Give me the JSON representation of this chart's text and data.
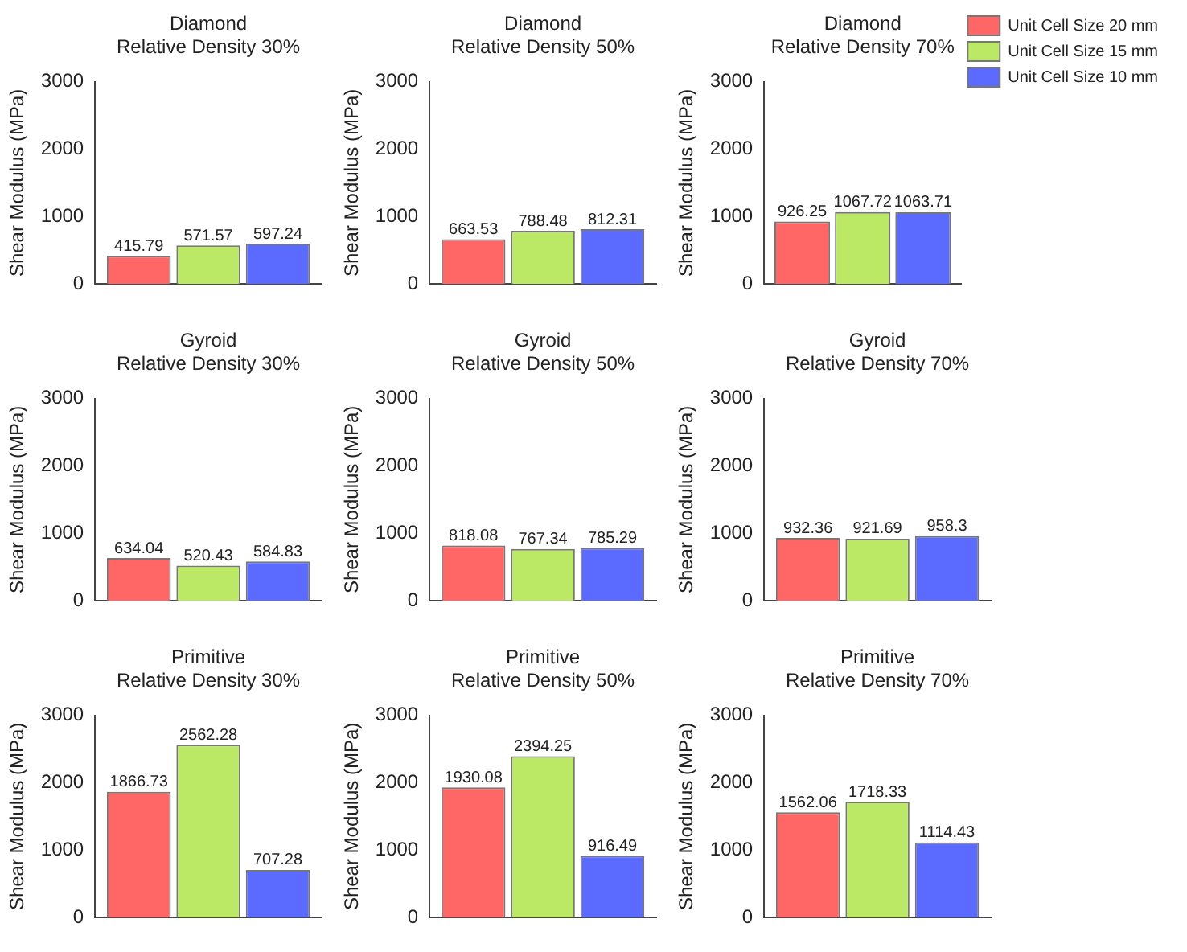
{
  "chart_data": [
    {
      "type": "bar",
      "title": "Diamond",
      "subtitle": "Relative Density 30%",
      "ylabel": "Shear Modulus (MPa)",
      "categories": [
        null
      ],
      "ylim": [
        0,
        3000
      ],
      "yticks": [
        0,
        1000,
        2000,
        3000
      ],
      "grid": false,
      "data_labels": true,
      "series": [
        {
          "color": "#ff6666",
          "values": [
            415.79
          ]
        },
        {
          "color": "#bbe865",
          "values": [
            571.57
          ]
        },
        {
          "color": "#5b6bff",
          "values": [
            597.24
          ]
        }
      ]
    },
    {
      "type": "bar",
      "title": "Diamond",
      "subtitle": "Relative Density 50%",
      "ylabel": "Shear Modulus (MPa)",
      "categories": [
        null
      ],
      "ylim": [
        0,
        3000
      ],
      "yticks": [
        0,
        1000,
        2000,
        3000
      ],
      "grid": false,
      "data_labels": true,
      "series": [
        {
          "color": "#ff6666",
          "values": [
            663.53
          ]
        },
        {
          "color": "#bbe865",
          "values": [
            788.48
          ]
        },
        {
          "color": "#5b6bff",
          "values": [
            812.31
          ]
        }
      ]
    },
    {
      "type": "bar",
      "title": "Diamond",
      "subtitle": "Relative Density 70%",
      "ylabel": "Shear Modulus (MPa)",
      "categories": [
        null
      ],
      "ylim": [
        0,
        3000
      ],
      "yticks": [
        0,
        1000,
        2000,
        3000
      ],
      "grid": false,
      "data_labels": true,
      "legend": "top right",
      "series": [
        {
          "name": "Unit Cell Size 20 mm",
          "color": "#ff6666",
          "values": [
            926.25
          ]
        },
        {
          "name": "Unit Cell Size 15 mm",
          "color": "#bbe865",
          "values": [
            1067.72
          ]
        },
        {
          "name": "Unit Cell Size 10 mm",
          "color": "#5b6bff",
          "values": [
            1063.71
          ]
        }
      ]
    },
    {
      "type": "bar",
      "title": "Gyroid",
      "subtitle": "Relative Density 30%",
      "ylabel": "Shear Modulus (MPa)",
      "categories": [
        null
      ],
      "ylim": [
        0,
        3000
      ],
      "yticks": [
        0,
        1000,
        2000,
        3000
      ],
      "grid": false,
      "data_labels": true,
      "series": [
        {
          "color": "#ff6666",
          "values": [
            634.04
          ]
        },
        {
          "color": "#bbe865",
          "values": [
            520.43
          ]
        },
        {
          "color": "#5b6bff",
          "values": [
            584.83
          ]
        }
      ]
    },
    {
      "type": "bar",
      "title": "Gyroid",
      "subtitle": "Relative Density 50%",
      "ylabel": "Shear Modulus (MPa)",
      "categories": [
        null
      ],
      "ylim": [
        0,
        3000
      ],
      "yticks": [
        0,
        1000,
        2000,
        3000
      ],
      "grid": false,
      "data_labels": true,
      "series": [
        {
          "color": "#ff6666",
          "values": [
            818.08
          ]
        },
        {
          "color": "#bbe865",
          "values": [
            767.34
          ]
        },
        {
          "color": "#5b6bff",
          "values": [
            785.29
          ]
        }
      ]
    },
    {
      "type": "bar",
      "title": "Gyroid",
      "subtitle": "Relative Density 70%",
      "ylabel": "Shear Modulus (MPa)",
      "categories": [
        null
      ],
      "ylim": [
        0,
        3000
      ],
      "yticks": [
        0,
        1000,
        2000,
        3000
      ],
      "grid": false,
      "data_labels": true,
      "series": [
        {
          "color": "#ff6666",
          "values": [
            932.36
          ]
        },
        {
          "color": "#bbe865",
          "values": [
            921.69
          ]
        },
        {
          "color": "#5b6bff",
          "values": [
            958.3
          ]
        }
      ]
    },
    {
      "type": "bar",
      "title": "Primitive",
      "subtitle": "Relative Density 30%",
      "ylabel": "Shear Modulus (MPa)",
      "categories": [
        null
      ],
      "ylim": [
        0,
        3000
      ],
      "yticks": [
        0,
        1000,
        2000,
        3000
      ],
      "grid": false,
      "data_labels": true,
      "series": [
        {
          "color": "#ff6666",
          "values": [
            1866.73
          ]
        },
        {
          "color": "#bbe865",
          "values": [
            2562.28
          ]
        },
        {
          "color": "#5b6bff",
          "values": [
            707.28
          ]
        }
      ]
    },
    {
      "type": "bar",
      "title": "Primitive",
      "subtitle": "Relative Density 50%",
      "ylabel": "Shear Modulus (MPa)",
      "categories": [
        null
      ],
      "ylim": [
        0,
        3000
      ],
      "yticks": [
        0,
        1000,
        2000,
        3000
      ],
      "grid": false,
      "data_labels": true,
      "series": [
        {
          "color": "#ff6666",
          "values": [
            1930.08
          ]
        },
        {
          "color": "#bbe865",
          "values": [
            2394.25
          ]
        },
        {
          "color": "#5b6bff",
          "values": [
            916.49
          ]
        }
      ]
    },
    {
      "type": "bar",
      "title": "Primitive",
      "subtitle": "Relative Density 70%",
      "ylabel": "Shear Modulus (MPa)",
      "categories": [
        null
      ],
      "ylim": [
        0,
        3000
      ],
      "yticks": [
        0,
        1000,
        2000,
        3000
      ],
      "grid": false,
      "data_labels": true,
      "series": [
        {
          "color": "#ff6666",
          "values": [
            1562.06
          ]
        },
        {
          "color": "#bbe865",
          "values": [
            1718.33
          ]
        },
        {
          "color": "#5b6bff",
          "values": [
            1114.43
          ]
        }
      ]
    }
  ]
}
